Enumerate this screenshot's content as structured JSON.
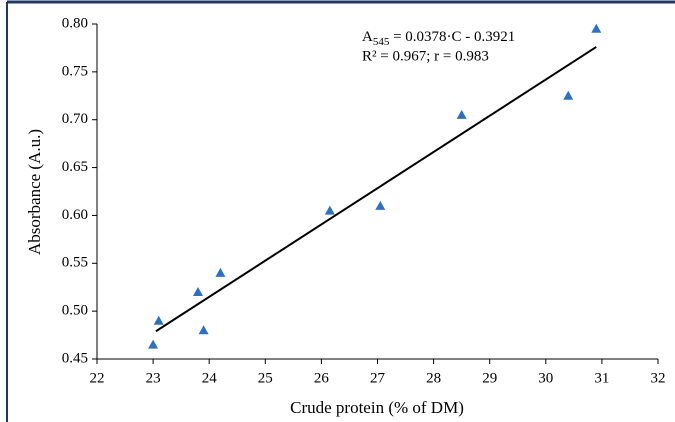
{
  "chart_data": {
    "type": "scatter",
    "x_label": "Crude protein (% of DM)",
    "y_label": "Absorbance (A.u.)",
    "annotation": {
      "line1": [
        "A",
        "545",
        " = 0.0378·C - 0.3921"
      ],
      "line2": "R² = 0.967; r = 0.983"
    },
    "series": [
      {
        "color": "#2f70bd",
        "x": [
          23.0,
          23.1,
          23.8,
          23.9,
          24.2,
          26.15,
          27.05,
          28.5,
          30.4,
          30.9
        ],
        "values": [
          0.465,
          0.49,
          0.52,
          0.48,
          0.54,
          0.605,
          0.61,
          0.705,
          0.725,
          0.795
        ]
      }
    ],
    "trendline": {
      "color": "#000000",
      "x": [
        23.05,
        30.9
      ],
      "values": [
        0.479,
        0.776
      ]
    },
    "xlim": [
      22,
      32
    ],
    "xticks": [
      22,
      23,
      24,
      25,
      26,
      27,
      28,
      29,
      30,
      31,
      32
    ],
    "ylim": [
      0.45,
      0.8
    ],
    "yticks": [
      {
        "value": 0.45,
        "label": "0.45"
      },
      {
        "value": 0.5,
        "label": "0.50"
      },
      {
        "value": 0.55,
        "label": "0.55"
      },
      {
        "value": 0.6,
        "label": "0.60"
      },
      {
        "value": 0.65,
        "label": "0.65"
      },
      {
        "value": 0.7,
        "label": "0.70"
      },
      {
        "value": 0.75,
        "label": "0.75"
      },
      {
        "value": 0.8,
        "label": "0.80"
      }
    ]
  }
}
